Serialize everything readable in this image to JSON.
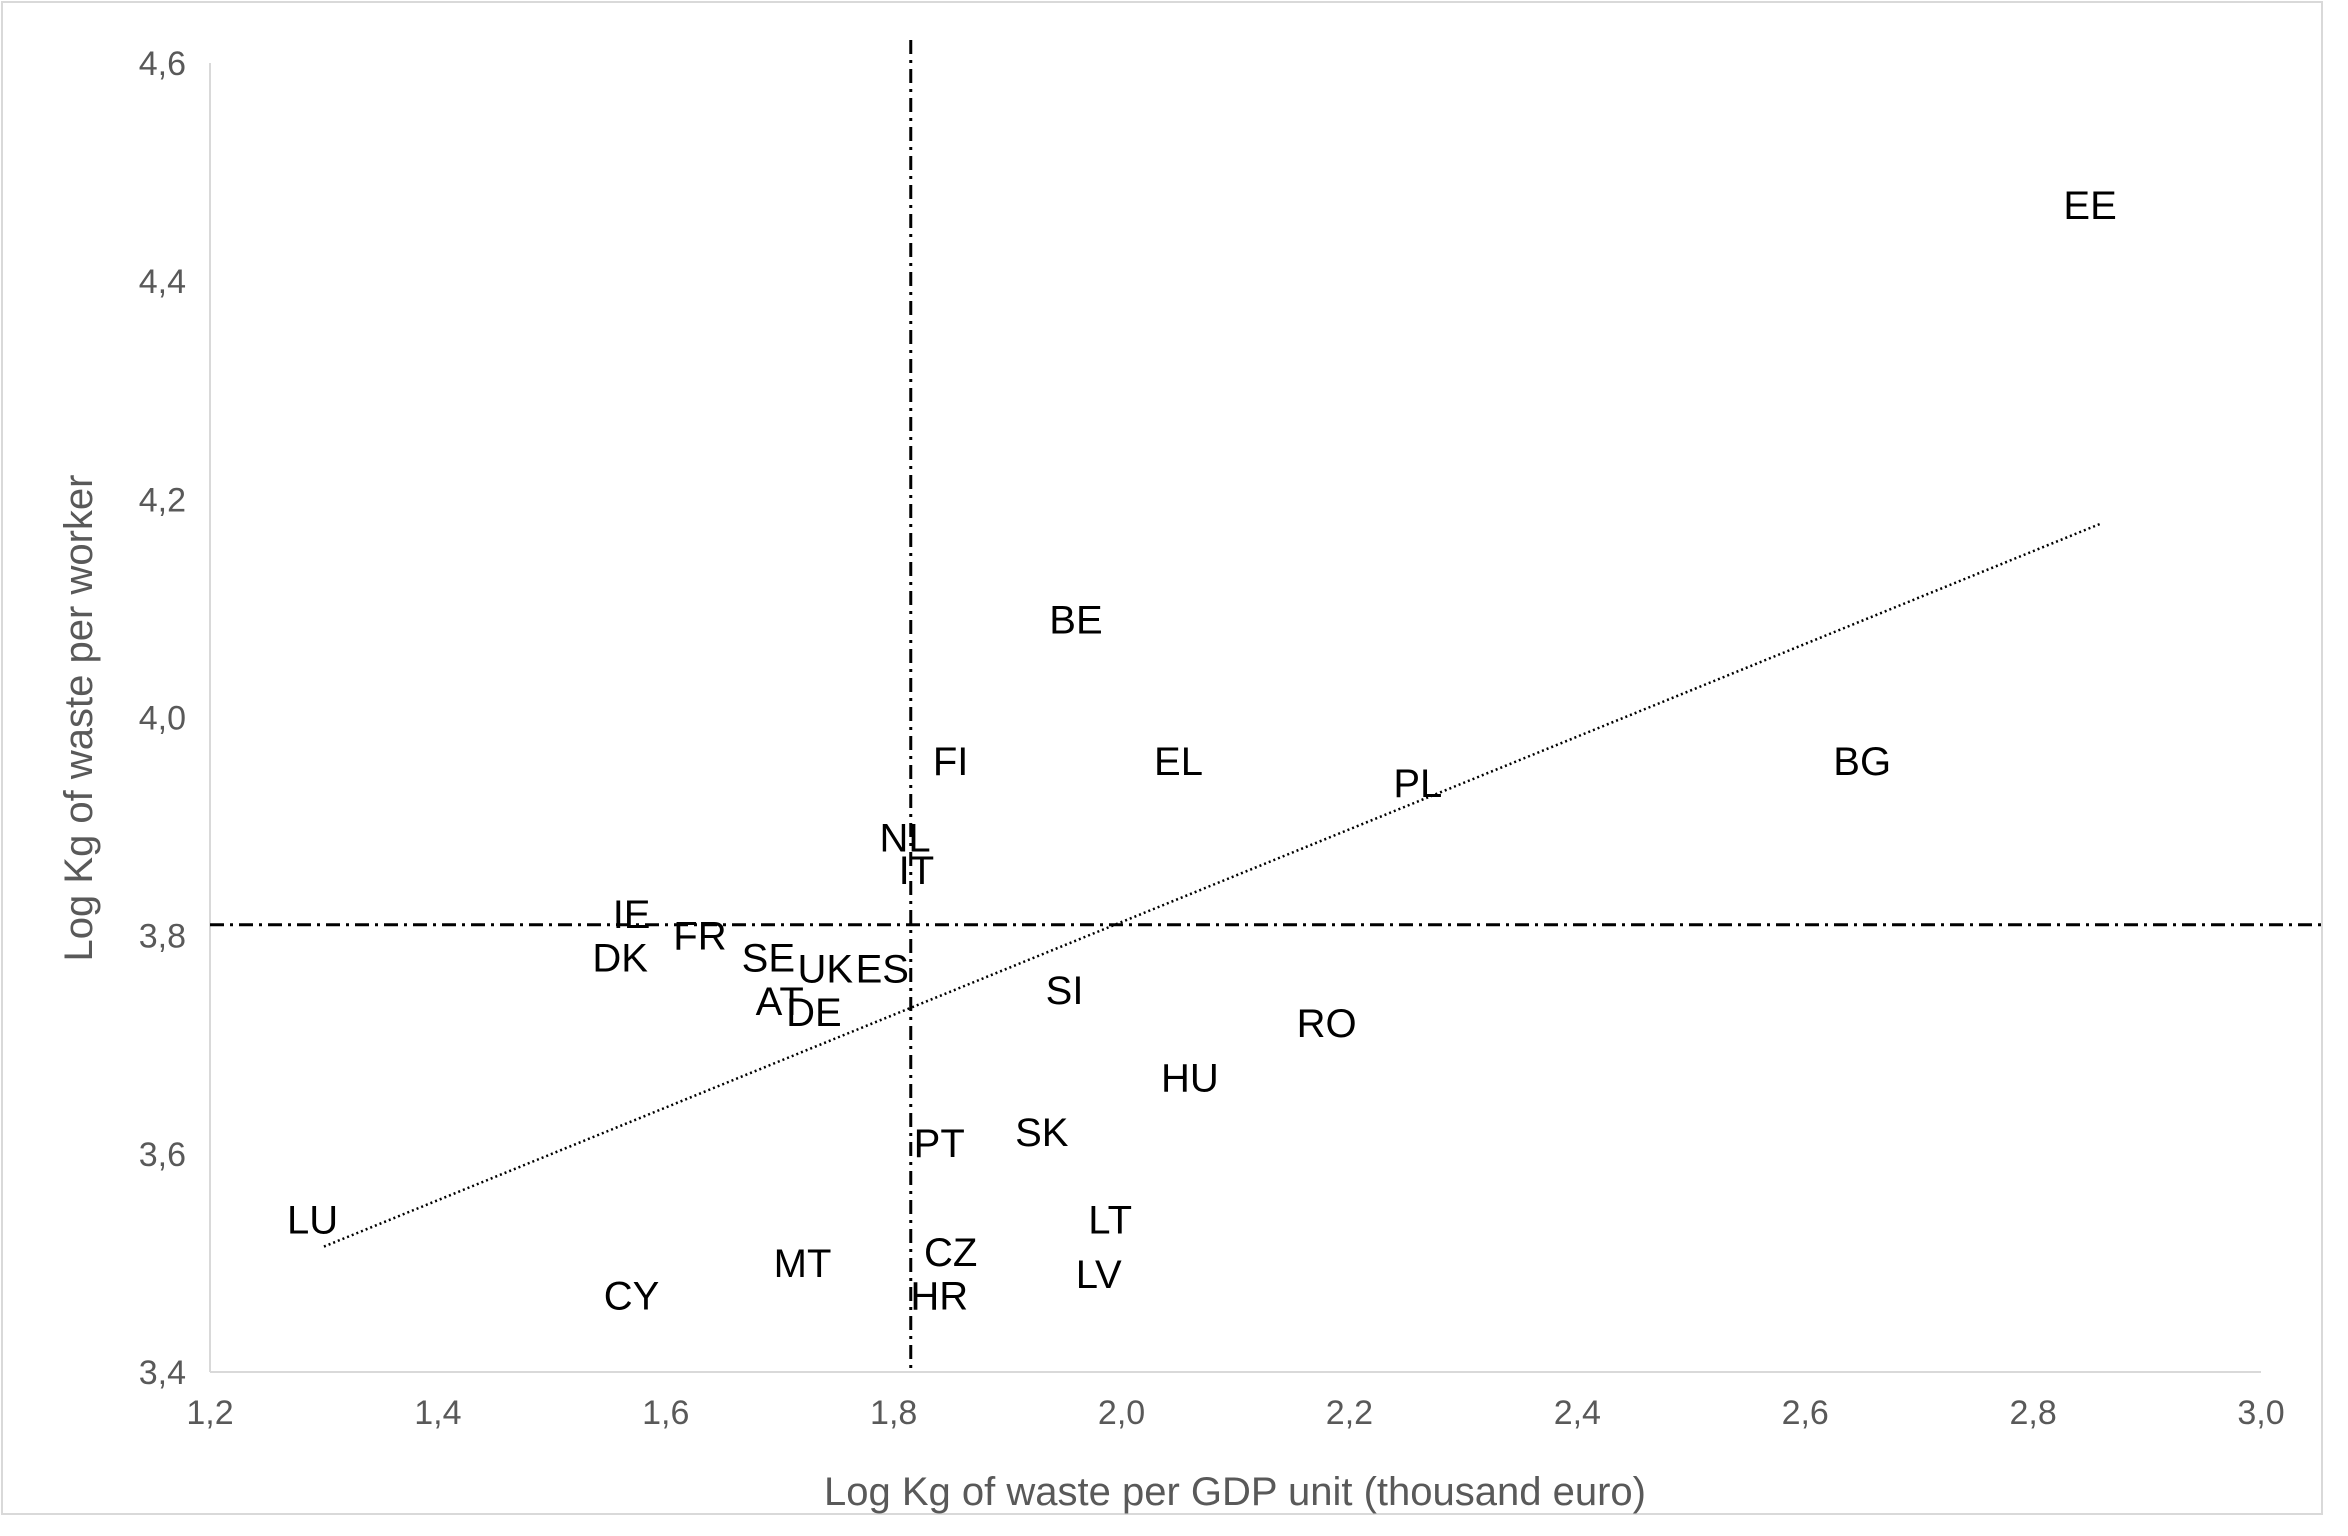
{
  "chart_data": {
    "type": "scatter",
    "title": "",
    "xlabel": "Log Kg of waste per GDP unit (thousand euro)",
    "ylabel": "Log Kg of waste per worker",
    "xlim": [
      1.2,
      3.0
    ],
    "ylim": [
      3.4,
      4.6
    ],
    "xticks": [
      "1,2",
      "1,4",
      "1,6",
      "1,8",
      "2,0",
      "2,2",
      "2,4",
      "2,6",
      "2,8",
      "3,0"
    ],
    "yticks": [
      "3,4",
      "3,6",
      "3,8",
      "4,0",
      "4,2",
      "4,4",
      "4,6"
    ],
    "xtick_values": [
      1.2,
      1.4,
      1.6,
      1.8,
      2.0,
      2.2,
      2.4,
      2.6,
      2.8,
      3.0
    ],
    "ytick_values": [
      3.4,
      3.6,
      3.8,
      4.0,
      4.2,
      4.4,
      4.6
    ],
    "grid": false,
    "points": [
      {
        "label": "EE",
        "x": 2.85,
        "y": 4.47
      },
      {
        "label": "BE",
        "x": 1.96,
        "y": 4.09
      },
      {
        "label": "FI",
        "x": 1.85,
        "y": 3.96
      },
      {
        "label": "EL",
        "x": 2.05,
        "y": 3.96
      },
      {
        "label": "PL",
        "x": 2.26,
        "y": 3.94
      },
      {
        "label": "BG",
        "x": 2.65,
        "y": 3.96
      },
      {
        "label": "NL",
        "x": 1.81,
        "y": 3.89
      },
      {
        "label": "IT",
        "x": 1.82,
        "y": 3.86
      },
      {
        "label": "IE",
        "x": 1.57,
        "y": 3.82
      },
      {
        "label": "FR",
        "x": 1.63,
        "y": 3.8
      },
      {
        "label": "DK",
        "x": 1.56,
        "y": 3.78
      },
      {
        "label": "SE",
        "x": 1.69,
        "y": 3.78
      },
      {
        "label": "UK",
        "x": 1.74,
        "y": 3.77
      },
      {
        "label": "ES",
        "x": 1.79,
        "y": 3.77
      },
      {
        "label": "AT",
        "x": 1.7,
        "y": 3.74
      },
      {
        "label": "DE",
        "x": 1.73,
        "y": 3.73
      },
      {
        "label": "SI",
        "x": 1.95,
        "y": 3.75
      },
      {
        "label": "RO",
        "x": 2.18,
        "y": 3.72
      },
      {
        "label": "HU",
        "x": 2.06,
        "y": 3.67
      },
      {
        "label": "PT",
        "x": 1.84,
        "y": 3.61
      },
      {
        "label": "SK",
        "x": 1.93,
        "y": 3.62
      },
      {
        "label": "LU",
        "x": 1.29,
        "y": 3.54
      },
      {
        "label": "LT",
        "x": 1.99,
        "y": 3.54
      },
      {
        "label": "CZ",
        "x": 1.85,
        "y": 3.51
      },
      {
        "label": "LV",
        "x": 1.98,
        "y": 3.49
      },
      {
        "label": "MT",
        "x": 1.72,
        "y": 3.5
      },
      {
        "label": "CY",
        "x": 1.57,
        "y": 3.47
      },
      {
        "label": "HR",
        "x": 1.84,
        "y": 3.47
      }
    ],
    "trendline": {
      "x": [
        1.3,
        2.86
      ],
      "y": [
        3.515,
        4.178
      ],
      "style": "dotted"
    },
    "reference_lines": {
      "vertical_x": 1.815,
      "horizontal_y": 3.81,
      "style": "dash-dot"
    }
  }
}
